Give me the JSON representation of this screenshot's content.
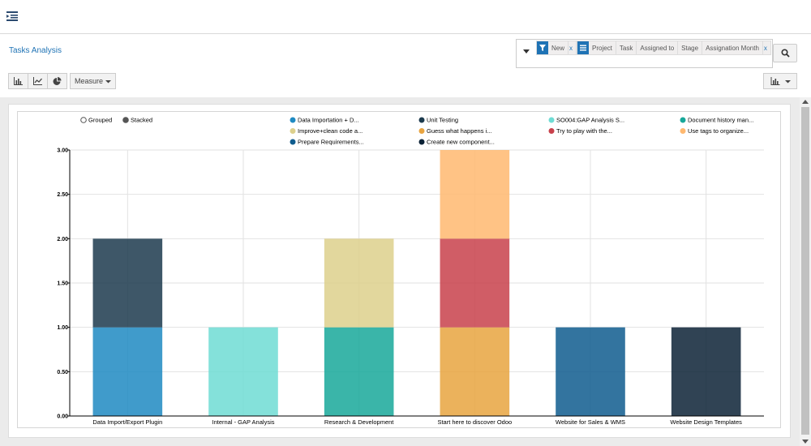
{
  "breadcrumb": "Tasks Analysis",
  "search": {
    "filter_facet": {
      "values": [
        "New"
      ]
    },
    "groupby_facet": {
      "values": [
        "Project",
        "Task",
        "Assigned to",
        "Stage",
        "Assignation Month"
      ]
    }
  },
  "toolbar": {
    "measure_label": "Measure"
  },
  "chart_data": {
    "type": "bar",
    "mode": "stacked",
    "mode_options": [
      "Grouped",
      "Stacked"
    ],
    "categories": [
      "Data Import/Export Plugin",
      "Internal - GAP Analysis",
      "Research & Development",
      "Start here to discover Odoo",
      "Website for Sales & WMS",
      "Website Design Templates"
    ],
    "y_ticks": [
      "0.00",
      "0.50",
      "1.00",
      "1.50",
      "2.00",
      "2.50",
      "3.00"
    ],
    "ylim": [
      0,
      3
    ],
    "legend_columns": 4,
    "legend_placement": "top",
    "series": [
      {
        "name": "Data Importation + D...",
        "color": "#1f8ac2",
        "values": [
          1,
          0,
          0,
          0,
          0,
          0
        ]
      },
      {
        "name": "Unit Testing",
        "color": "#1c3a4d",
        "values": [
          1,
          0,
          0,
          0,
          0,
          0
        ]
      },
      {
        "name": "SO004:GAP Analysis S...",
        "color": "#6fdcd4",
        "values": [
          0,
          1,
          0,
          0,
          0,
          0
        ]
      },
      {
        "name": "Document history man...",
        "color": "#17a89a",
        "values": [
          0,
          0,
          1,
          0,
          0,
          0
        ]
      },
      {
        "name": "Improve+clean code a...",
        "color": "#ddd08c",
        "values": [
          0,
          0,
          1,
          0,
          0,
          0
        ]
      },
      {
        "name": "Guess what happens i...",
        "color": "#e8a440",
        "values": [
          0,
          0,
          0,
          1,
          0,
          0
        ]
      },
      {
        "name": "Try to play with the...",
        "color": "#c8414b",
        "values": [
          0,
          0,
          0,
          1,
          0,
          0
        ]
      },
      {
        "name": "Use tags to organize...",
        "color": "#ffb970",
        "values": [
          0,
          0,
          0,
          1,
          0,
          0
        ]
      },
      {
        "name": "Prepare Requirements...",
        "color": "#0f5c8e",
        "values": [
          0,
          0,
          0,
          0,
          1,
          0
        ]
      },
      {
        "name": "Create new component...",
        "color": "#0c2236",
        "values": [
          0,
          0,
          0,
          0,
          0,
          1
        ]
      }
    ]
  }
}
